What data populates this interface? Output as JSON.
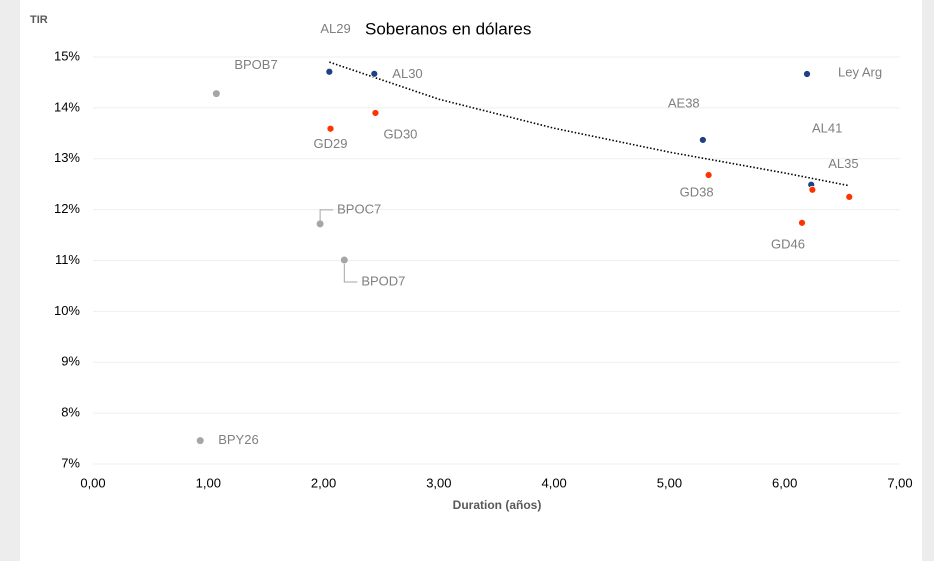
{
  "chart_data": {
    "type": "scatter",
    "title": "Soberanos en dólares",
    "ylabel": "TIR",
    "xlabel": "Duration (años)",
    "xlim": [
      0,
      7
    ],
    "xticks": [
      {
        "value": 0,
        "label": "0,00"
      },
      {
        "value": 1,
        "label": "1,00"
      },
      {
        "value": 2,
        "label": "2,00"
      },
      {
        "value": 3,
        "label": "3,00"
      },
      {
        "value": 4,
        "label": "4,00"
      },
      {
        "value": 5,
        "label": "5,00"
      },
      {
        "value": 6,
        "label": "6,00"
      },
      {
        "value": 7,
        "label": "7,00"
      }
    ],
    "ylim": [
      7,
      15
    ],
    "yticks": [
      {
        "value": 7,
        "label": "7%"
      },
      {
        "value": 8,
        "label": "8%"
      },
      {
        "value": 9,
        "label": "9%"
      },
      {
        "value": 10,
        "label": "10%"
      },
      {
        "value": 11,
        "label": "11%"
      },
      {
        "value": 12,
        "label": "12%"
      },
      {
        "value": 13,
        "label": "13%"
      },
      {
        "value": 14,
        "label": "14%"
      },
      {
        "value": 15,
        "label": "15%"
      }
    ],
    "grid": true,
    "legend": "top-right",
    "series": [
      {
        "name": "Ley Arg",
        "color": "#1f3f86",
        "x": [
          2.05,
          2.44,
          5.29,
          6.23
        ],
        "values": [
          14.71,
          14.67,
          13.37,
          12.49
        ],
        "labels": [
          "AL29",
          "AL30",
          "AE38",
          "AL35"
        ]
      },
      {
        "color": "#ff3300",
        "x": [
          2.06,
          2.45,
          5.34,
          6.15,
          6.24,
          6.56
        ],
        "values": [
          13.59,
          13.9,
          12.68,
          11.74,
          12.39,
          12.25
        ],
        "labels": [
          "GD29",
          "GD30",
          "GD38",
          "GD46",
          null,
          null
        ]
      },
      {
        "color": "#a6a6a6",
        "x": [
          1.07,
          1.97,
          2.18,
          0.93
        ],
        "values": [
          14.28,
          11.72,
          11.01,
          7.46
        ],
        "labels": [
          "BPOB7",
          "BPOC7",
          "BPOD7",
          "BPY26"
        ]
      }
    ],
    "annotations": [
      "AL41"
    ],
    "trendline": {
      "x": [
        2.05,
        3,
        4,
        5,
        6,
        6.56
      ],
      "values": [
        14.9,
        14.17,
        13.6,
        13.13,
        12.72,
        12.47
      ]
    }
  }
}
